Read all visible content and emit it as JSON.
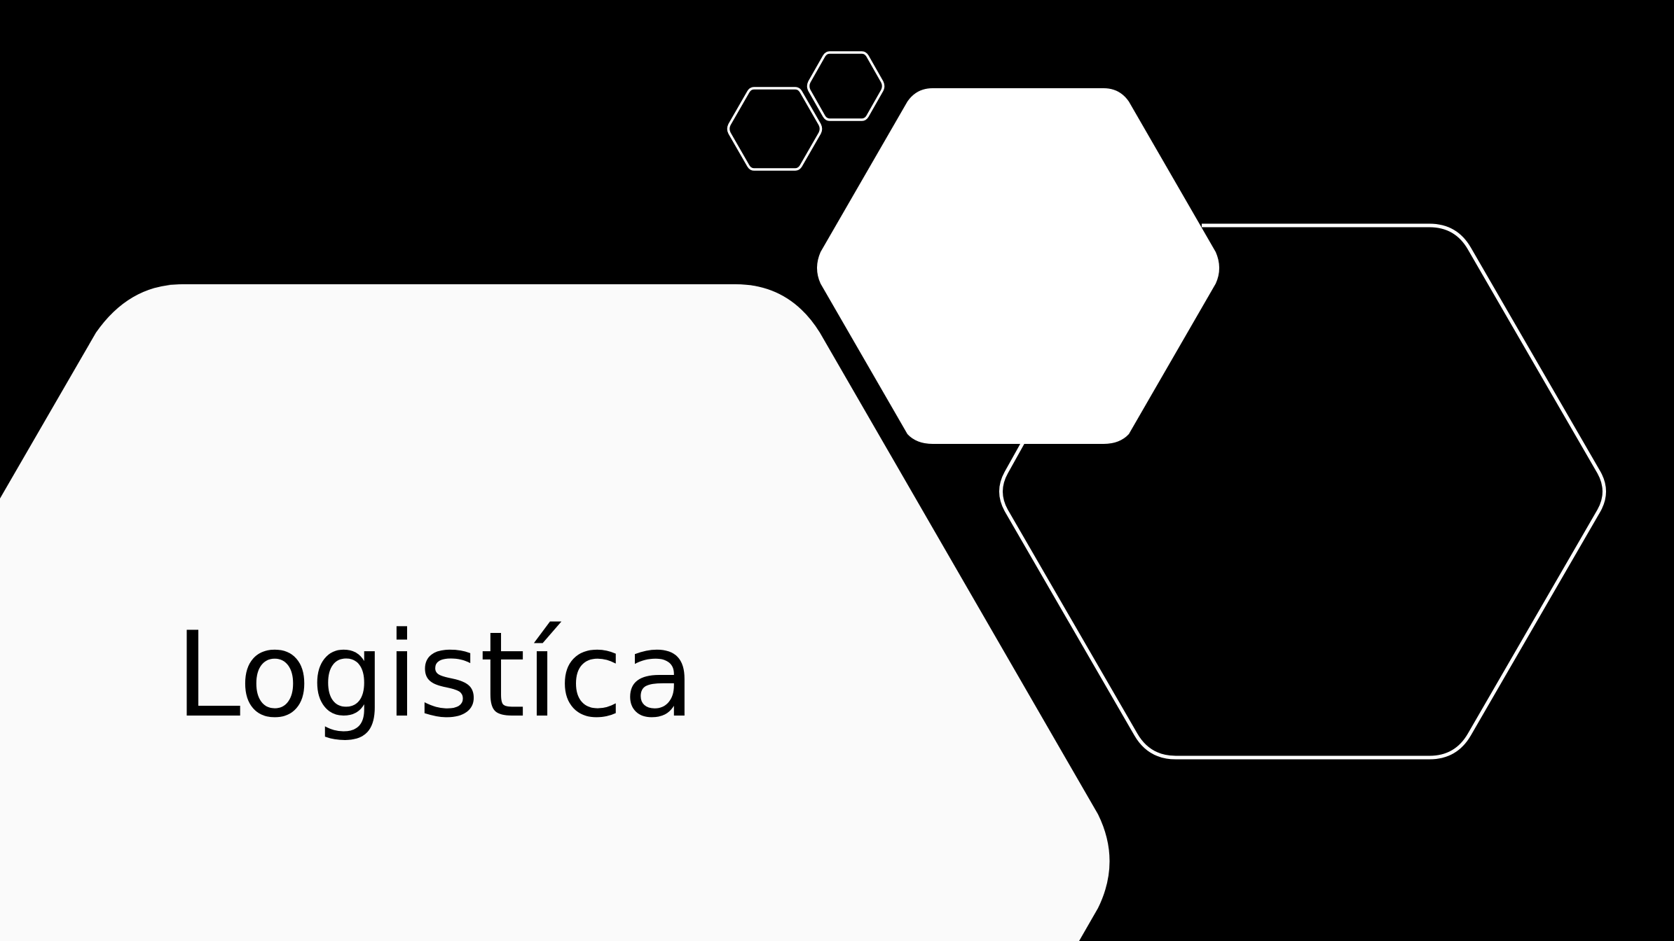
{
  "slide": {
    "title": "Logistíca",
    "colors": {
      "background": "#000000",
      "panel": "#fafafa",
      "hexagon_fill": "#ffffff",
      "outline": "#ffffff",
      "title_text": "#000000"
    }
  }
}
